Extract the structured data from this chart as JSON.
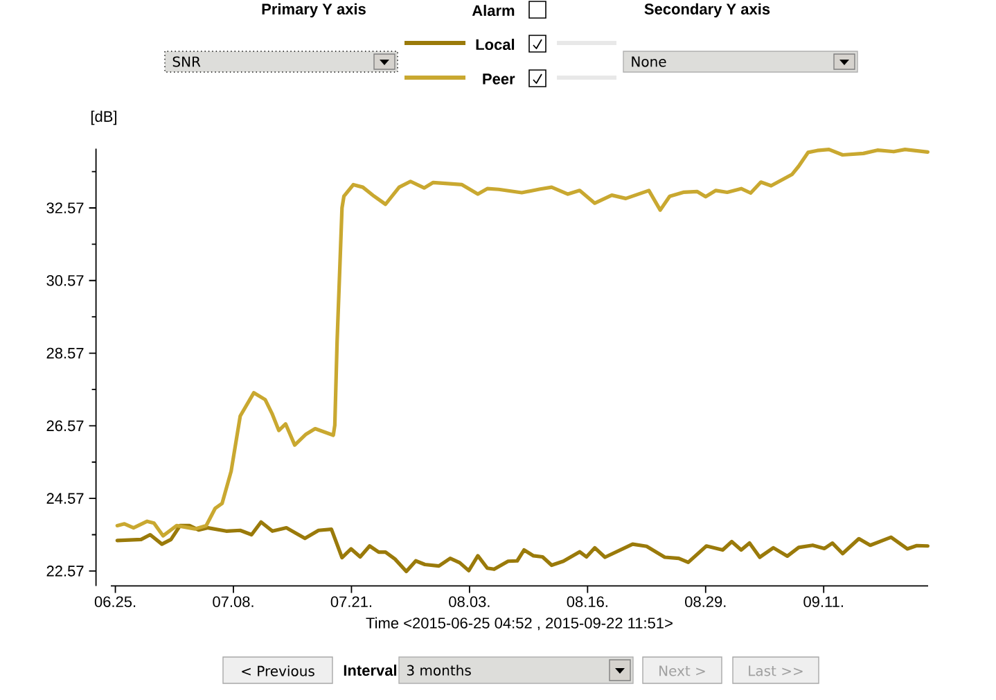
{
  "chart_data": {
    "type": "line",
    "xlabel": "Time <2015-06-25 04:52 , 2015-09-22 11:51>",
    "ylabel": "[dB]",
    "annotations": [
      "Primary Y axis",
      "Alarm",
      "Secondary Y axis",
      "SNR",
      "None",
      "< Previous",
      "Interval",
      "3 months",
      "Next >",
      "Last >>"
    ],
    "xlim": [
      "2015-06-24T12:00",
      "2015-09-22T12:00"
    ],
    "xticks": [
      {
        "value": "2015-06-25",
        "label": "06.25."
      },
      {
        "value": "2015-07-08",
        "label": "07.08."
      },
      {
        "value": "2015-07-21",
        "label": "07.21."
      },
      {
        "value": "2015-08-03",
        "label": "08.03."
      },
      {
        "value": "2015-08-16",
        "label": "08.16."
      },
      {
        "value": "2015-08-29",
        "label": "08.29."
      },
      {
        "value": "2015-09-11",
        "label": "09.11."
      }
    ],
    "ylim": [
      22.16,
      34.2
    ],
    "yticks": [
      22.57,
      {
        "value": 23.57,
        "label": null
      },
      24.57,
      {
        "value": 25.57,
        "label": null
      },
      26.57,
      {
        "value": 27.57,
        "label": null
      },
      28.57,
      {
        "value": 29.57,
        "label": null
      },
      30.57,
      {
        "value": 31.57,
        "label": null
      },
      32.57,
      {
        "value": 33.57,
        "label": null
      }
    ],
    "legend": "top",
    "series": [
      {
        "name": "Local",
        "color": "#9a7a0a",
        "x": [
          "2015-06-25T05:00",
          "2015-06-27T20:00",
          "2015-06-28T20:00",
          "2015-06-30T03:00",
          "2015-07-01T03:00",
          "2015-07-02T03:00",
          "2015-07-03T04:00",
          "2015-07-04T04:00",
          "2015-07-05T05:00",
          "2015-07-07T05:00",
          "2015-07-08T18:00",
          "2015-07-10T00:00",
          "2015-07-11T01:00",
          "2015-07-12T07:00",
          "2015-07-13T20:00",
          "2015-07-15T21:00",
          "2015-07-17T09:00",
          "2015-07-18T19:00",
          "2015-07-19T23:00",
          "2015-07-20T23:00",
          "2015-07-21T23:00",
          "2015-07-23T00:00",
          "2015-07-24T00:00",
          "2015-07-24T18:00",
          "2015-07-25T19:00",
          "2015-07-27T01:00",
          "2015-07-28T02:00",
          "2015-07-29T02:00",
          "2015-07-30T15:00",
          "2015-07-31T21:00",
          "2015-08-01T22:00",
          "2015-08-02T22:00",
          "2015-08-03T22:00",
          "2015-08-04T23:00",
          "2015-08-05T17:00",
          "2015-08-07T06:00",
          "2015-08-08T06:00",
          "2015-08-09T00:00",
          "2015-08-10T01:00",
          "2015-08-11T01:00",
          "2015-08-12T01:00",
          "2015-08-13T08:00",
          "2015-08-15T03:00",
          "2015-08-15T21:00",
          "2015-08-16T19:00",
          "2015-08-17T22:00",
          "2015-08-20T23:00",
          "2015-08-22T12:00",
          "2015-08-24T12:00",
          "2015-08-26T01:00",
          "2015-08-27T02:00",
          "2015-08-29T02:00",
          "2015-08-30T21:00",
          "2015-08-31T21:00",
          "2015-09-01T22:00",
          "2015-09-02T20:00",
          "2015-09-03T23:00",
          "2015-09-05T11:00",
          "2015-09-07T00:00",
          "2015-09-08T06:00",
          "2015-09-09T19:00",
          "2015-09-11T02:00",
          "2015-09-11T23:00",
          "2015-09-13T02:00",
          "2015-09-14T21:00",
          "2015-09-16T03:00",
          "2015-09-18T10:00",
          "2015-09-20T05:00",
          "2015-09-21T06:00",
          "2015-09-22T11:00"
        ],
        "values": [
          23.41,
          23.44,
          23.57,
          23.31,
          23.44,
          23.82,
          23.82,
          23.7,
          23.76,
          23.67,
          23.69,
          23.57,
          23.92,
          23.67,
          23.76,
          23.47,
          23.69,
          23.72,
          22.94,
          23.18,
          22.96,
          23.26,
          23.09,
          23.09,
          22.9,
          22.56,
          22.85,
          22.75,
          22.71,
          22.92,
          22.8,
          22.58,
          22.99,
          22.65,
          22.62,
          22.84,
          22.85,
          23.15,
          22.99,
          22.96,
          22.73,
          22.84,
          23.1,
          22.96,
          23.21,
          22.95,
          23.31,
          23.25,
          22.95,
          22.92,
          22.81,
          23.26,
          23.15,
          23.38,
          23.15,
          23.34,
          22.95,
          23.21,
          22.98,
          23.22,
          23.28,
          23.19,
          23.34,
          23.05,
          23.46,
          23.28,
          23.5,
          23.18,
          23.27,
          23.26
        ]
      },
      {
        "name": "Peer",
        "color": "#c9a830",
        "x": [
          "2015-06-25T05:00",
          "2015-06-26T00:00",
          "2015-06-27T00:00",
          "2015-06-28T12:00",
          "2015-06-29T06:00",
          "2015-06-30T06:00",
          "2015-07-01T18:00",
          "2015-07-03T18:00",
          "2015-07-05T00:00",
          "2015-07-06T00:00",
          "2015-07-06T18:00",
          "2015-07-07T18:00",
          "2015-07-08T18:00",
          "2015-07-10T06:00",
          "2015-07-11T12:00",
          "2015-07-12T06:00",
          "2015-07-13T00:00",
          "2015-07-13T18:00",
          "2015-07-14T18:00",
          "2015-07-16T00:00",
          "2015-07-17T00:00",
          "2015-07-19T00:00",
          "2015-07-19T04:00",
          "2015-07-19T10:00",
          "2015-07-19T23:00",
          "2015-07-20T04:00",
          "2015-07-21T05:00",
          "2015-07-22T06:00",
          "2015-07-23T12:00",
          "2015-07-24T18:00",
          "2015-07-26T06:00",
          "2015-07-27T12:00",
          "2015-07-29T00:00",
          "2015-07-30T00:00",
          "2015-08-01T03:00",
          "2015-08-02T04:00",
          "2015-08-03T22:00",
          "2015-08-04T23:00",
          "2015-08-06T05:00",
          "2015-08-08T18:00",
          "2015-08-10T19:00",
          "2015-08-12T01:00",
          "2015-08-13T20:00",
          "2015-08-15T03:00",
          "2015-08-16T19:00",
          "2015-08-18T16:00",
          "2015-08-20T05:00",
          "2015-08-22T18:00",
          "2015-08-24T00:00",
          "2015-08-25T01:00",
          "2015-08-26T13:00",
          "2015-08-28T02:00",
          "2015-08-29T00:00",
          "2015-08-30T03:00",
          "2015-08-31T09:00",
          "2015-09-01T22:00",
          "2015-09-02T23:00",
          "2015-09-04T02:00",
          "2015-09-05T05:00",
          "2015-09-07T12:00",
          "2015-09-08T06:00",
          "2015-09-09T07:00",
          "2015-09-10T07:00",
          "2015-09-11T14:00",
          "2015-09-13T02:00",
          "2015-09-15T09:00",
          "2015-09-16T22:00",
          "2015-09-18T17:00",
          "2015-09-19T23:00",
          "2015-09-22T11:00"
        ],
        "values": [
          23.82,
          23.87,
          23.76,
          23.94,
          23.89,
          23.54,
          23.82,
          23.73,
          23.82,
          24.3,
          24.43,
          25.32,
          26.84,
          27.48,
          27.29,
          26.91,
          26.44,
          26.62,
          26.04,
          26.34,
          26.49,
          26.31,
          26.59,
          28.88,
          32.57,
          32.89,
          33.21,
          33.14,
          32.89,
          32.67,
          33.14,
          33.3,
          33.12,
          33.27,
          33.23,
          33.21,
          32.95,
          33.1,
          33.08,
          32.99,
          33.09,
          33.14,
          32.95,
          33.05,
          32.7,
          32.92,
          32.83,
          33.05,
          32.51,
          32.89,
          33.0,
          33.02,
          32.88,
          33.05,
          33.0,
          33.1,
          32.98,
          33.28,
          33.18,
          33.49,
          33.72,
          34.1,
          34.15,
          34.18,
          34.03,
          34.07,
          34.16,
          34.12,
          34.18,
          34.11
        ]
      }
    ]
  }
}
